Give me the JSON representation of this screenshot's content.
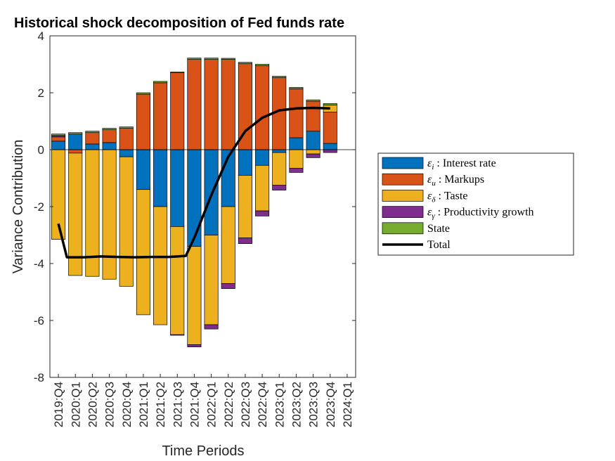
{
  "chart_data": {
    "type": "bar",
    "stacked": true,
    "title": "Historical shock decomposition of Fed funds rate",
    "xlabel": "Time Periods",
    "ylabel": "Variance Contribution",
    "ylim": [
      -8,
      4
    ],
    "yticks": [
      -8,
      -6,
      -4,
      -2,
      0,
      2,
      4
    ],
    "categories": [
      "2019:Q4",
      "2020:Q1",
      "2020:Q2",
      "2020:Q3",
      "2020:Q4",
      "2021:Q1",
      "2021:Q2",
      "2021:Q3",
      "2021:Q4",
      "2022:Q1",
      "2022:Q2",
      "2022:Q3",
      "2022:Q4",
      "2023:Q1",
      "2023:Q2",
      "2023:Q3",
      "2023:Q4"
    ],
    "xtick_labels": [
      "2019:Q4",
      "2020:Q1",
      "2020:Q2",
      "2020:Q3",
      "2020:Q4",
      "2021:Q1",
      "2021:Q2",
      "2021:Q3",
      "2021:Q4",
      "2022:Q1",
      "2022:Q2",
      "2022:Q3",
      "2022:Q4",
      "2023:Q1",
      "2023:Q2",
      "2023:Q3",
      "2023:Q4",
      "2024:Q1"
    ],
    "grid": false,
    "legend_position": "right",
    "series": [
      {
        "name": "Interest rate",
        "symbol": "ε",
        "subscript": "i",
        "color": "#0072BD",
        "values": [
          0.3,
          0.55,
          0.2,
          0.25,
          -0.25,
          -1.4,
          -2.0,
          -2.7,
          -3.4,
          -3.0,
          -2.0,
          -0.9,
          -0.55,
          -0.1,
          0.42,
          0.65,
          0.22
        ]
      },
      {
        "name": "Markups",
        "symbol": "ε",
        "subscript": "u",
        "color": "#D95319",
        "values": [
          0.15,
          -0.12,
          0.4,
          0.45,
          0.75,
          1.95,
          2.35,
          2.7,
          3.17,
          3.17,
          3.17,
          3.02,
          2.95,
          2.53,
          1.72,
          1.05,
          1.1
        ]
      },
      {
        "name": "Taste",
        "symbol": "ε",
        "subscript": "δ",
        "color": "#EDB120",
        "values": [
          -3.15,
          -4.3,
          -4.45,
          -4.55,
          -4.55,
          -4.4,
          -4.15,
          -3.8,
          -3.45,
          -3.15,
          -2.7,
          -2.2,
          -1.6,
          -1.15,
          -0.65,
          -0.15,
          0.25
        ]
      },
      {
        "name": "Productivity growth",
        "symbol": "ε",
        "subscript": "γ",
        "color": "#7E2F8E",
        "values": [
          0.05,
          0.0,
          0.0,
          0.0,
          0.0,
          0.0,
          0.0,
          -0.02,
          -0.08,
          -0.15,
          -0.18,
          -0.2,
          -0.18,
          -0.17,
          -0.15,
          -0.13,
          -0.1
        ]
      },
      {
        "name": "State",
        "symbol": "",
        "subscript": "",
        "color": "#77AC30",
        "values": [
          0.05,
          0.05,
          0.05,
          0.05,
          0.05,
          0.05,
          0.05,
          0.03,
          0.05,
          0.05,
          0.04,
          0.05,
          0.05,
          0.05,
          0.05,
          0.05,
          0.05
        ]
      }
    ],
    "total": {
      "name": "Total",
      "color": "#000000",
      "x": [
        0,
        0.5,
        1.5,
        2.5,
        3.5,
        4.5,
        5.5,
        6.5,
        7.5,
        8,
        9,
        10,
        11,
        12,
        13,
        14,
        15,
        16
      ],
      "values": [
        -2.6,
        -3.78,
        -3.78,
        -3.75,
        -3.77,
        -3.78,
        -3.77,
        -3.77,
        -3.73,
        -3.1,
        -1.6,
        -0.25,
        0.65,
        1.12,
        1.38,
        1.45,
        1.47,
        1.45
      ]
    }
  }
}
